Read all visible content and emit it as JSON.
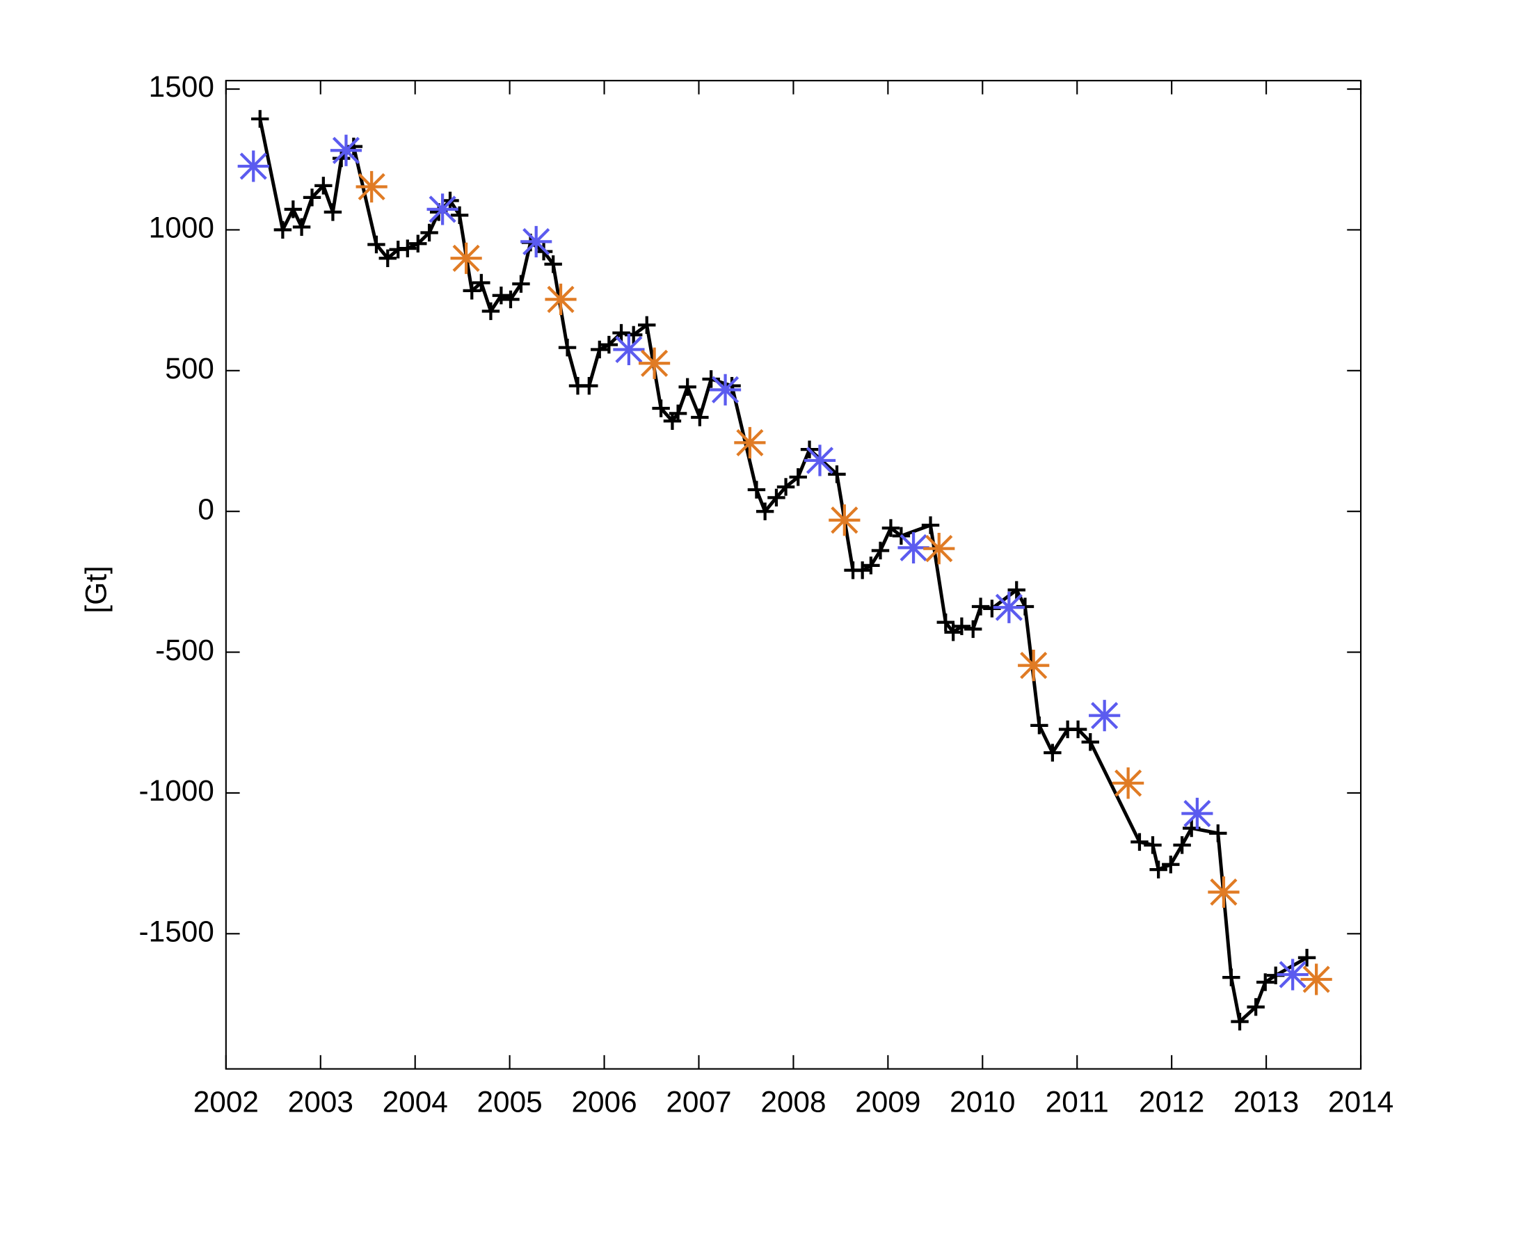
{
  "chart_data": {
    "type": "line",
    "y_label": "[Gt]",
    "xlim": [
      2002,
      2014
    ],
    "xticks": [
      2002,
      2003,
      2004,
      2005,
      2006,
      2007,
      2008,
      2009,
      2010,
      2011,
      2012,
      2013,
      2014
    ],
    "ylim": [
      -1980,
      1530
    ],
    "yticks": [
      -1500,
      -1000,
      -500,
      0,
      500,
      1000,
      1500
    ],
    "series": [
      {
        "color": "#000000",
        "marker": "plus",
        "line": true,
        "x": [
          2002.36,
          2002.6,
          2002.71,
          2002.8,
          2002.91,
          2003.03,
          2003.13,
          2003.22,
          2003.35,
          2003.59,
          2003.71,
          2003.82,
          2003.92,
          2004.03,
          2004.15,
          2004.25,
          2004.37,
          2004.47,
          2004.6,
          2004.7,
          2004.8,
          2004.91,
          2005.01,
          2005.12,
          2005.22,
          2005.36,
          2005.46,
          2005.61,
          2005.72,
          2005.84,
          2005.95,
          2006.05,
          2006.18,
          2006.31,
          2006.45,
          2006.6,
          2006.72,
          2006.78,
          2006.88,
          2007.01,
          2007.13,
          2007.35,
          2007.61,
          2007.7,
          2007.82,
          2007.92,
          2008.05,
          2008.17,
          2008.46,
          2008.63,
          2008.73,
          2008.82,
          2008.92,
          2009.03,
          2009.14,
          2009.45,
          2009.61,
          2009.69,
          2009.78,
          2009.9,
          2009.98,
          2010.1,
          2010.36,
          2010.45,
          2010.6,
          2010.74,
          2010.9,
          2011.01,
          2011.14,
          2011.66,
          2011.8,
          2011.86,
          2011.99,
          2012.11,
          2012.21,
          2012.49,
          2012.63,
          2012.72,
          2012.89,
          2012.99,
          2013.1,
          2013.43
        ],
        "values": [
          1394,
          1000,
          1073,
          1010,
          1115,
          1157,
          1063,
          1254,
          1296,
          948,
          899,
          930,
          934,
          951,
          990,
          1063,
          1104,
          1052,
          784,
          812,
          711,
          767,
          753,
          808,
          955,
          923,
          878,
          582,
          446,
          446,
          575,
          592,
          634,
          627,
          662,
          366,
          321,
          348,
          442,
          334,
          470,
          446,
          77,
          0,
          49,
          87,
          122,
          220,
          132,
          -209,
          -209,
          -192,
          -139,
          -59,
          -87,
          -49,
          -394,
          -429,
          -408,
          -418,
          -338,
          -345,
          -279,
          -338,
          -760,
          -857,
          -774,
          -774,
          -819,
          -1174,
          -1185,
          -1272,
          -1254,
          -1185,
          -1125,
          -1143,
          -1655,
          -1812,
          -1760,
          -1672,
          -1648,
          -1585
        ]
      },
      {
        "color": "#5b5bef",
        "marker": "asterisk",
        "line": false,
        "x": [
          2002.29,
          2003.27,
          2004.29,
          2005.28,
          2006.26,
          2007.28,
          2008.28,
          2009.27,
          2010.28,
          2011.29,
          2012.27,
          2013.28
        ],
        "values": [
          1226,
          1282,
          1073,
          958,
          575,
          432,
          181,
          -129,
          -341,
          -725,
          -1073,
          -1645
        ]
      },
      {
        "color": "#e07b24",
        "marker": "asterisk",
        "line": false,
        "x": [
          2003.54,
          2004.54,
          2005.54,
          2006.53,
          2007.54,
          2008.54,
          2009.54,
          2010.54,
          2011.54,
          2012.55,
          2013.53
        ],
        "values": [
          1153,
          899,
          753,
          526,
          244,
          -31,
          -132,
          -547,
          -965,
          -1352,
          -1662
        ]
      }
    ]
  }
}
